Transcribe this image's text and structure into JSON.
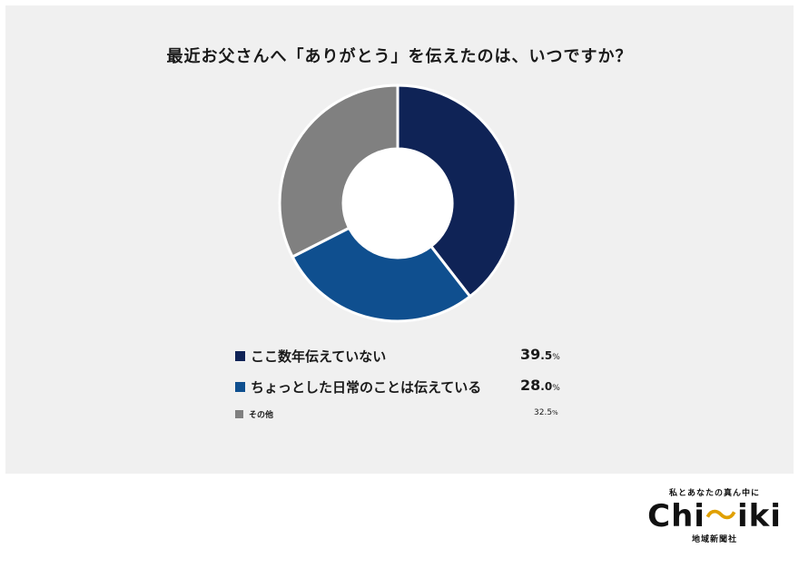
{
  "chart_data": {
    "type": "donut",
    "title": "最近お父さんへ「ありがとう」を伝えたのは、いつですか？",
    "unit": "%",
    "categories": [
      "ここ数年伝えていない",
      "ちょっとした日常のことは伝えている",
      "その他"
    ],
    "values": [
      39.5,
      28.0,
      32.5
    ],
    "colors": [
      "#0f2356",
      "#0f4f8f",
      "#808080"
    ],
    "value_labels": [
      {
        "int": "39",
        "dec": ".5",
        "unit": "%"
      },
      {
        "int": "28",
        "dec": ".0",
        "unit": "%"
      },
      {
        "int": "32",
        "dec": ".5",
        "unit": "%"
      }
    ]
  },
  "footer": {
    "tagline": "私とあなたの真ん中に",
    "brand_left": "Chi",
    "brand_mid": "〜",
    "brand_right": "iki",
    "sub": "地域新聞社"
  }
}
